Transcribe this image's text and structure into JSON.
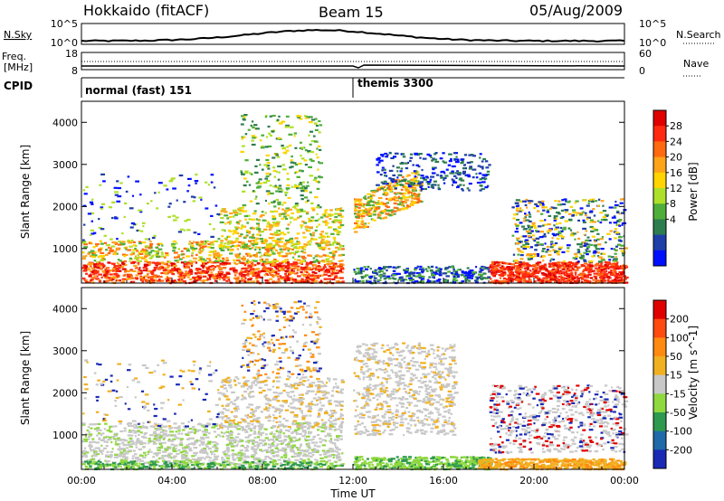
{
  "header": {
    "station": "Hokkaido (fitACF)",
    "beam": "Beam 15",
    "date": "05/Aug/2009"
  },
  "panels": {
    "nsky": {
      "label": "N.Sky",
      "left_ticks": [
        "10^5",
        "10^0"
      ],
      "right_label": "N.Search",
      "right_ticks": [
        "10^5",
        "10^0"
      ]
    },
    "freq": {
      "label_line1": "Freq.",
      "label_line2": "[MHz]",
      "left_ticks": [
        "18",
        "8"
      ],
      "right_label": "Nave",
      "right_ticks": [
        "60",
        "0"
      ]
    },
    "cpid": {
      "label": "CPID",
      "modes": [
        "normal (fast) 151",
        "themis 3300"
      ]
    }
  },
  "chart_data": [
    {
      "type": "heatmap",
      "title": "",
      "xlabel": "",
      "ylabel": "Slant Range [km]",
      "x_ticks": [
        "00:00",
        "04:00",
        "08:00",
        "12:00",
        "16:00",
        "20:00",
        "00:00"
      ],
      "xlim_hours": [
        0,
        24
      ],
      "y_ticks": [
        1000,
        2000,
        3000,
        4000
      ],
      "ylim_km": [
        180,
        4500
      ],
      "colorbar": {
        "label": "Power [dB]",
        "ticks": [
          "28",
          "24",
          "20",
          "16",
          "12",
          "8",
          "4"
        ],
        "colors": [
          "#0010ff",
          "#1f3ea8",
          "#2e7d4f",
          "#4fae3a",
          "#aee02a",
          "#ffd400",
          "#ffa31a",
          "#ff6a10",
          "#ff2a10",
          "#e00000"
        ]
      }
    },
    {
      "type": "heatmap",
      "title": "",
      "xlabel": "Time UT",
      "ylabel": "Slant Range [km]",
      "x_ticks": [
        "00:00",
        "04:00",
        "08:00",
        "12:00",
        "16:00",
        "20:00",
        "00:00"
      ],
      "xlim_hours": [
        0,
        24
      ],
      "y_ticks": [
        1000,
        2000,
        3000,
        4000
      ],
      "ylim_km": [
        180,
        4500
      ],
      "colorbar": {
        "label": "Velocity [m s^-1]",
        "ticks": [
          "200",
          "100",
          "50",
          "15",
          "-15",
          "-50",
          "-100",
          "-200"
        ],
        "colors": [
          "#1a2ab4",
          "#1f6aa8",
          "#2e9a4f",
          "#8fd840",
          "#c8c8c8",
          "#f0b020",
          "#ff8a10",
          "#ff4a10",
          "#e00000"
        ]
      }
    }
  ]
}
